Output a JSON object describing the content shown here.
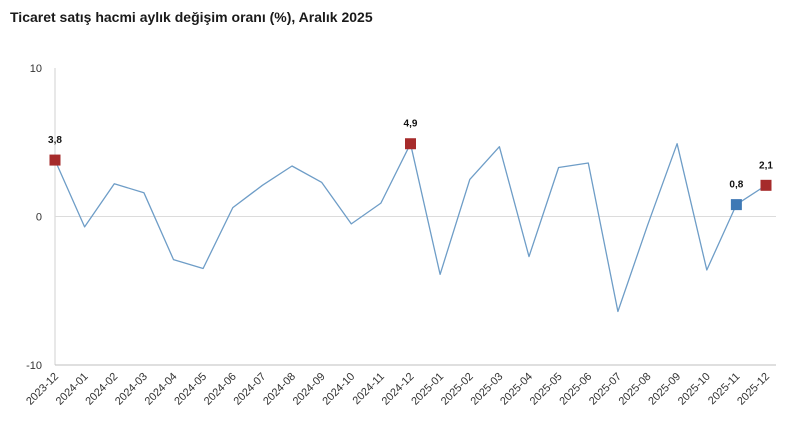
{
  "chart_data": {
    "type": "line",
    "title": "Ticaret satış hacmi aylık değişim oranı (%), Aralık 2025",
    "xlabel": "",
    "ylabel": "",
    "ylim": [
      -10,
      10
    ],
    "yticks": [
      "10",
      "0",
      "-10"
    ],
    "grid": false,
    "legend": "none",
    "categories": [
      "2023-12",
      "2024-01",
      "2024-02",
      "2024-03",
      "2024-04",
      "2024-05",
      "2024-06",
      "2024-07",
      "2024-08",
      "2024-09",
      "2024-10",
      "2024-11",
      "2024-12",
      "2025-01",
      "2025-02",
      "2025-03",
      "2025-04",
      "2025-05",
      "2025-06",
      "2025-07",
      "2025-08",
      "2025-09",
      "2025-10",
      "2025-11",
      "2025-12"
    ],
    "series": [
      {
        "values": [
          3.8,
          -0.7,
          2.2,
          1.6,
          -2.9,
          -3.5,
          0.6,
          2.1,
          3.4,
          2.3,
          -0.5,
          0.9,
          4.9,
          -3.9,
          2.5,
          4.7,
          -2.7,
          3.3,
          3.6,
          -6.4,
          -0.6,
          4.9,
          -3.6,
          0.8,
          2.1
        ],
        "color": "#6e9dc7"
      }
    ],
    "highlighted_points": [
      {
        "x": "2023-12",
        "value": 3.8,
        "label": "3,8",
        "color": "#a62b2b"
      },
      {
        "x": "2024-12",
        "value": 4.9,
        "label": "4,9",
        "color": "#a62b2b"
      },
      {
        "x": "2025-11",
        "value": 0.8,
        "label": "0,8",
        "color": "#3f79b5"
      },
      {
        "x": "2025-12",
        "value": 2.1,
        "label": "2,1",
        "color": "#a62b2b"
      }
    ]
  }
}
